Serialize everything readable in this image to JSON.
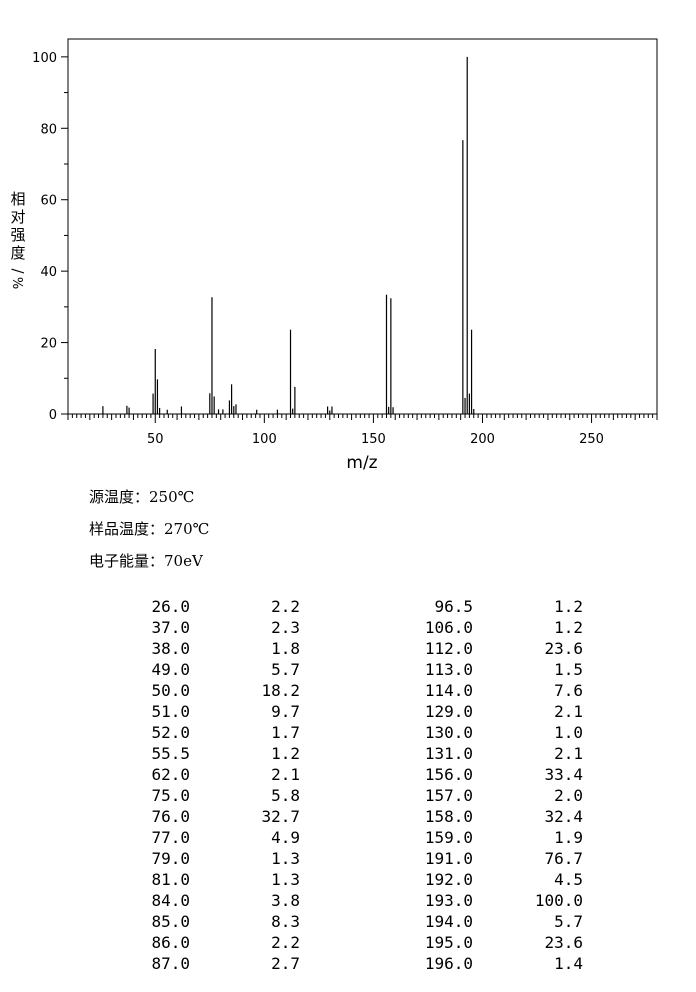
{
  "chart_data": {
    "type": "bar",
    "title": "",
    "xlabel": "m/z",
    "ylabel": "相对强度/%",
    "xlim": [
      10,
      280
    ],
    "ylim": [
      0,
      105
    ],
    "xticks": [
      50,
      100,
      150,
      200,
      250
    ],
    "yticks": [
      0,
      20,
      40,
      60,
      80,
      100
    ],
    "grid": false,
    "peaks": [
      [
        26.0,
        2.2
      ],
      [
        37.0,
        2.3
      ],
      [
        38.0,
        1.8
      ],
      [
        49.0,
        5.7
      ],
      [
        50.0,
        18.2
      ],
      [
        51.0,
        9.7
      ],
      [
        52.0,
        1.7
      ],
      [
        55.5,
        1.2
      ],
      [
        62.0,
        2.1
      ],
      [
        75.0,
        5.8
      ],
      [
        76.0,
        32.7
      ],
      [
        77.0,
        4.9
      ],
      [
        79.0,
        1.3
      ],
      [
        81.0,
        1.3
      ],
      [
        84.0,
        3.8
      ],
      [
        85.0,
        8.3
      ],
      [
        86.0,
        2.2
      ],
      [
        87.0,
        2.7
      ],
      [
        96.5,
        1.2
      ],
      [
        106.0,
        1.2
      ],
      [
        112.0,
        23.6
      ],
      [
        113.0,
        1.5
      ],
      [
        114.0,
        7.6
      ],
      [
        129.0,
        2.1
      ],
      [
        130.0,
        1.0
      ],
      [
        131.0,
        2.1
      ],
      [
        156.0,
        33.4
      ],
      [
        157.0,
        2.0
      ],
      [
        158.0,
        32.4
      ],
      [
        159.0,
        1.9
      ],
      [
        191.0,
        76.7
      ],
      [
        192.0,
        4.5
      ],
      [
        193.0,
        100.0
      ],
      [
        194.0,
        5.7
      ],
      [
        195.0,
        23.6
      ],
      [
        196.0,
        1.4
      ]
    ]
  },
  "conditions": {
    "source_temp": "源温度：250℃",
    "sample_temp": "样品温度：270℃",
    "electron_energy": "电子能量：70eV"
  },
  "peak_table": [
    [
      "26.0",
      "2.2",
      "96.5",
      "1.2"
    ],
    [
      "37.0",
      "2.3",
      "106.0",
      "1.2"
    ],
    [
      "38.0",
      "1.8",
      "112.0",
      "23.6"
    ],
    [
      "49.0",
      "5.7",
      "113.0",
      "1.5"
    ],
    [
      "50.0",
      "18.2",
      "114.0",
      "7.6"
    ],
    [
      "51.0",
      "9.7",
      "129.0",
      "2.1"
    ],
    [
      "52.0",
      "1.7",
      "130.0",
      "1.0"
    ],
    [
      "55.5",
      "1.2",
      "131.0",
      "2.1"
    ],
    [
      "62.0",
      "2.1",
      "156.0",
      "33.4"
    ],
    [
      "75.0",
      "5.8",
      "157.0",
      "2.0"
    ],
    [
      "76.0",
      "32.7",
      "158.0",
      "32.4"
    ],
    [
      "77.0",
      "4.9",
      "159.0",
      "1.9"
    ],
    [
      "79.0",
      "1.3",
      "191.0",
      "76.7"
    ],
    [
      "81.0",
      "1.3",
      "192.0",
      "4.5"
    ],
    [
      "84.0",
      "3.8",
      "193.0",
      "100.0"
    ],
    [
      "85.0",
      "8.3",
      "194.0",
      "5.7"
    ],
    [
      "86.0",
      "2.2",
      "195.0",
      "23.6"
    ],
    [
      "87.0",
      "2.7",
      "196.0",
      "1.4"
    ]
  ]
}
